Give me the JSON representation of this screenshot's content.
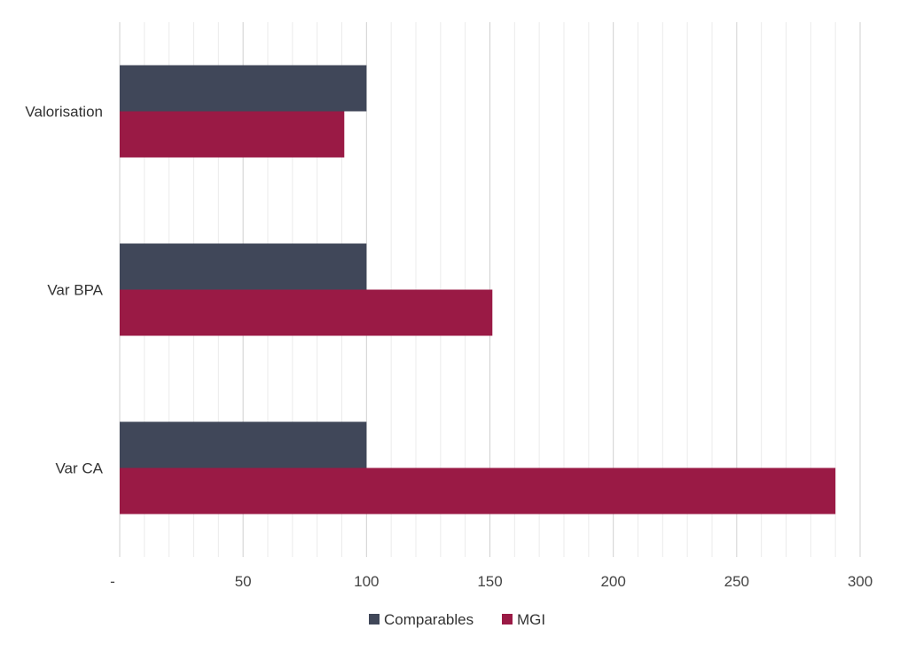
{
  "chart_data": {
    "type": "bar",
    "orientation": "horizontal",
    "categories": [
      "Valorisation",
      "Var BPA",
      "Var CA"
    ],
    "series": [
      {
        "name": "Comparables",
        "values": [
          100,
          100,
          100
        ],
        "color": "#404759"
      },
      {
        "name": "MGI",
        "values": [
          91,
          151,
          290
        ],
        "color": "#9A1A45"
      }
    ],
    "xlim": [
      0,
      300
    ],
    "x_ticks": [
      0,
      50,
      100,
      150,
      200,
      250,
      300
    ],
    "x_tick_labels": [
      "-",
      "50",
      "100",
      "150",
      "200",
      "250",
      "300"
    ],
    "grid": true,
    "legend_position": "bottom"
  }
}
